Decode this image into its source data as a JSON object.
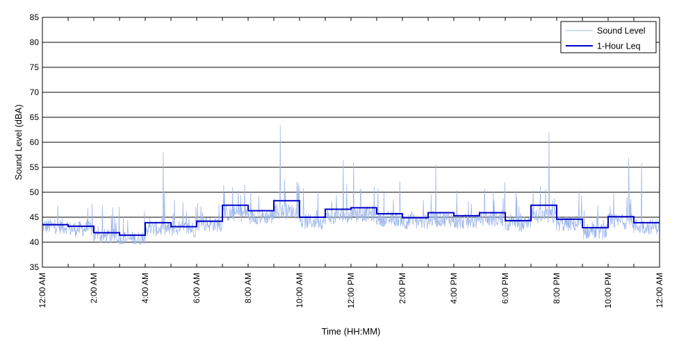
{
  "chart_data": {
    "type": "line",
    "title": "",
    "xlabel": "Time (HH:MM)",
    "ylabel": "Sound Level (dBA)",
    "ylim": [
      35,
      85
    ],
    "yticks": [
      35,
      40,
      45,
      50,
      55,
      60,
      65,
      70,
      75,
      80,
      85
    ],
    "xlim_hours": [
      0,
      24
    ],
    "xtick_hours": [
      0,
      2,
      4,
      6,
      8,
      10,
      12,
      14,
      16,
      18,
      20,
      22,
      24
    ],
    "xtick_labels": [
      "12:00 AM",
      "2:00 AM",
      "4:00 AM",
      "6:00 AM",
      "8:00 AM",
      "10:00 AM",
      "12:00 PM",
      "2:00 PM",
      "4:00 PM",
      "6:00 PM",
      "8:00 PM",
      "10:00 PM",
      "12:00 AM"
    ],
    "grid": "horizontal",
    "legend_position": "top-right",
    "series": [
      {
        "name": "Sound Level",
        "color": "#9fb7ea",
        "style": "thin",
        "approximate_profile": {
          "hour_start": [
            0,
            1,
            2,
            3,
            4,
            5,
            6,
            7,
            8,
            9,
            10,
            11,
            12,
            13,
            14,
            15,
            16,
            17,
            18,
            19,
            20,
            21,
            22,
            23
          ],
          "typical_level": [
            43,
            42.5,
            41,
            40.5,
            42.5,
            42.5,
            43.5,
            45.5,
            45,
            46,
            44,
            45,
            45.5,
            44.5,
            44,
            44.5,
            44,
            44.5,
            43.5,
            45,
            43.5,
            42,
            44,
            43
          ]
        },
        "notable_peaks": [
          {
            "time_hours": 4.7,
            "level": 58
          },
          {
            "time_hours": 9.25,
            "level": 63.5
          },
          {
            "time_hours": 11.7,
            "level": 56.5
          },
          {
            "time_hours": 12.1,
            "level": 56
          },
          {
            "time_hours": 15.3,
            "level": 55.5
          },
          {
            "time_hours": 19.7,
            "level": 62
          },
          {
            "time_hours": 22.8,
            "level": 56.8
          },
          {
            "time_hours": 23.3,
            "level": 55.8
          }
        ]
      },
      {
        "name": "1-Hour Leq",
        "color": "#0000c8",
        "style": "step",
        "hour_start": [
          0,
          1,
          2,
          3,
          4,
          5,
          6,
          7,
          8,
          9,
          10,
          11,
          12,
          13,
          14,
          15,
          16,
          17,
          18,
          19,
          20,
          21,
          22,
          23
        ],
        "values": [
          43.5,
          43.2,
          41.9,
          41.4,
          43.9,
          43.1,
          44.2,
          47.4,
          46.3,
          48.3,
          45.0,
          46.6,
          46.9,
          45.7,
          44.9,
          45.9,
          45.3,
          45.9,
          44.3,
          47.4,
          44.6,
          42.9,
          45.1,
          43.9
        ]
      }
    ]
  }
}
